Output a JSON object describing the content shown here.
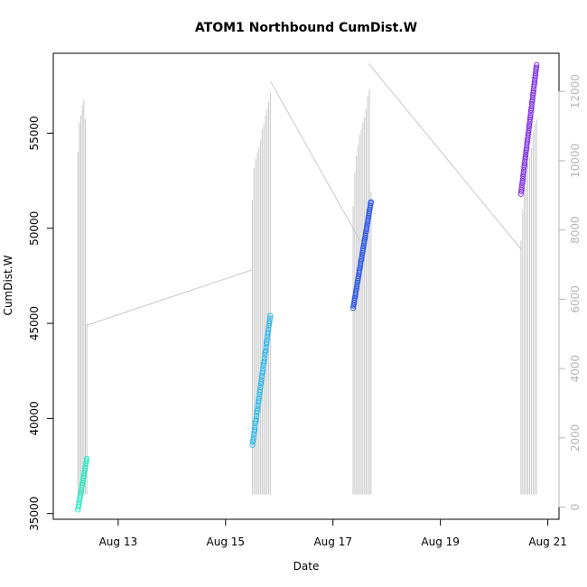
{
  "chart_data": {
    "type": "scatter",
    "title": "ATOM1 Northbound CumDist.W",
    "xlabel": "Date",
    "ylabel": "CumDist.W",
    "x_unit": "date",
    "xlim": [
      "2022-08-11T19:00",
      "2022-08-21T05:00"
    ],
    "ylim_left": [
      34700,
      59200
    ],
    "ylim_right": [
      -350,
      13100
    ],
    "x_ticks": [
      {
        "value": "2022-08-13T00:00",
        "label": "Aug 13"
      },
      {
        "value": "2022-08-15T00:00",
        "label": "Aug 15"
      },
      {
        "value": "2022-08-17T00:00",
        "label": "Aug 17"
      },
      {
        "value": "2022-08-19T00:00",
        "label": "Aug 19"
      },
      {
        "value": "2022-08-21T00:00",
        "label": "Aug 21"
      }
    ],
    "y_ticks_left": [
      35000,
      40000,
      45000,
      50000,
      55000
    ],
    "y_ticks_right": [
      0,
      2000,
      4000,
      6000,
      8000,
      10000,
      12000
    ],
    "secondary_color": "#c8c8c8",
    "secondary_tick_color": "#b4b4b4",
    "series": [
      {
        "color": "#22e8c0",
        "x_start": "2022-08-12T06:00",
        "x_end": "2022-08-12T10:00",
        "y_start": 35200,
        "y_end": 37900,
        "n": 22
      },
      {
        "color": "#26b8ec",
        "x_start": "2022-08-15T12:00",
        "x_end": "2022-08-15T20:00",
        "y_start": 38600,
        "y_end": 45400,
        "n": 50
      },
      {
        "color": "#2b55e6",
        "x_start": "2022-08-17T09:00",
        "x_end": "2022-08-17T17:00",
        "y_start": 45800,
        "y_end": 51400,
        "n": 55
      },
      {
        "color": "#7d2ae8",
        "x_start": "2022-08-20T12:00",
        "x_end": "2022-08-20T19:00",
        "y_start": 51800,
        "y_end": 58600,
        "n": 60
      }
    ],
    "secondary_series": {
      "axis": "right",
      "baseline_segments": [
        {
          "x_start": "2022-08-12T10:00",
          "y_start": 5250,
          "x_end": "2022-08-15T12:00",
          "y_end": 6850
        },
        {
          "x_start": "2022-08-15T20:00",
          "y_start": 12300,
          "x_end": "2022-08-17T12:00",
          "y_end": 7700
        },
        {
          "x_start": "2022-08-17T16:00",
          "y_start": 12800,
          "x_end": "2022-08-20T12:00",
          "y_end": 7450
        }
      ],
      "spike_groups": [
        {
          "x_start": "2022-08-12T06:00",
          "x_end": "2022-08-12T10:00",
          "heights": [
            10250,
            11100,
            11300,
            11600,
            11750,
            11200,
            5300
          ]
        },
        {
          "x_start": "2022-08-15T12:00",
          "x_end": "2022-08-15T20:00",
          "heights": [
            8850,
            9800,
            10050,
            10250,
            10400,
            10600,
            10900,
            11050,
            11300,
            11500,
            11700,
            12000
          ]
        },
        {
          "x_start": "2022-08-17T09:00",
          "x_end": "2022-08-17T17:00",
          "heights": [
            8700,
            9650,
            10150,
            10450,
            10750,
            10900,
            11100,
            11250,
            11500,
            11850,
            12050,
            9100
          ]
        },
        {
          "x_start": "2022-08-20T12:00",
          "x_end": "2022-08-20T19:00",
          "heights": [
            7700,
            8600,
            9200,
            9550,
            9900,
            10100,
            10350,
            10850,
            11050,
            11200
          ]
        }
      ]
    }
  }
}
